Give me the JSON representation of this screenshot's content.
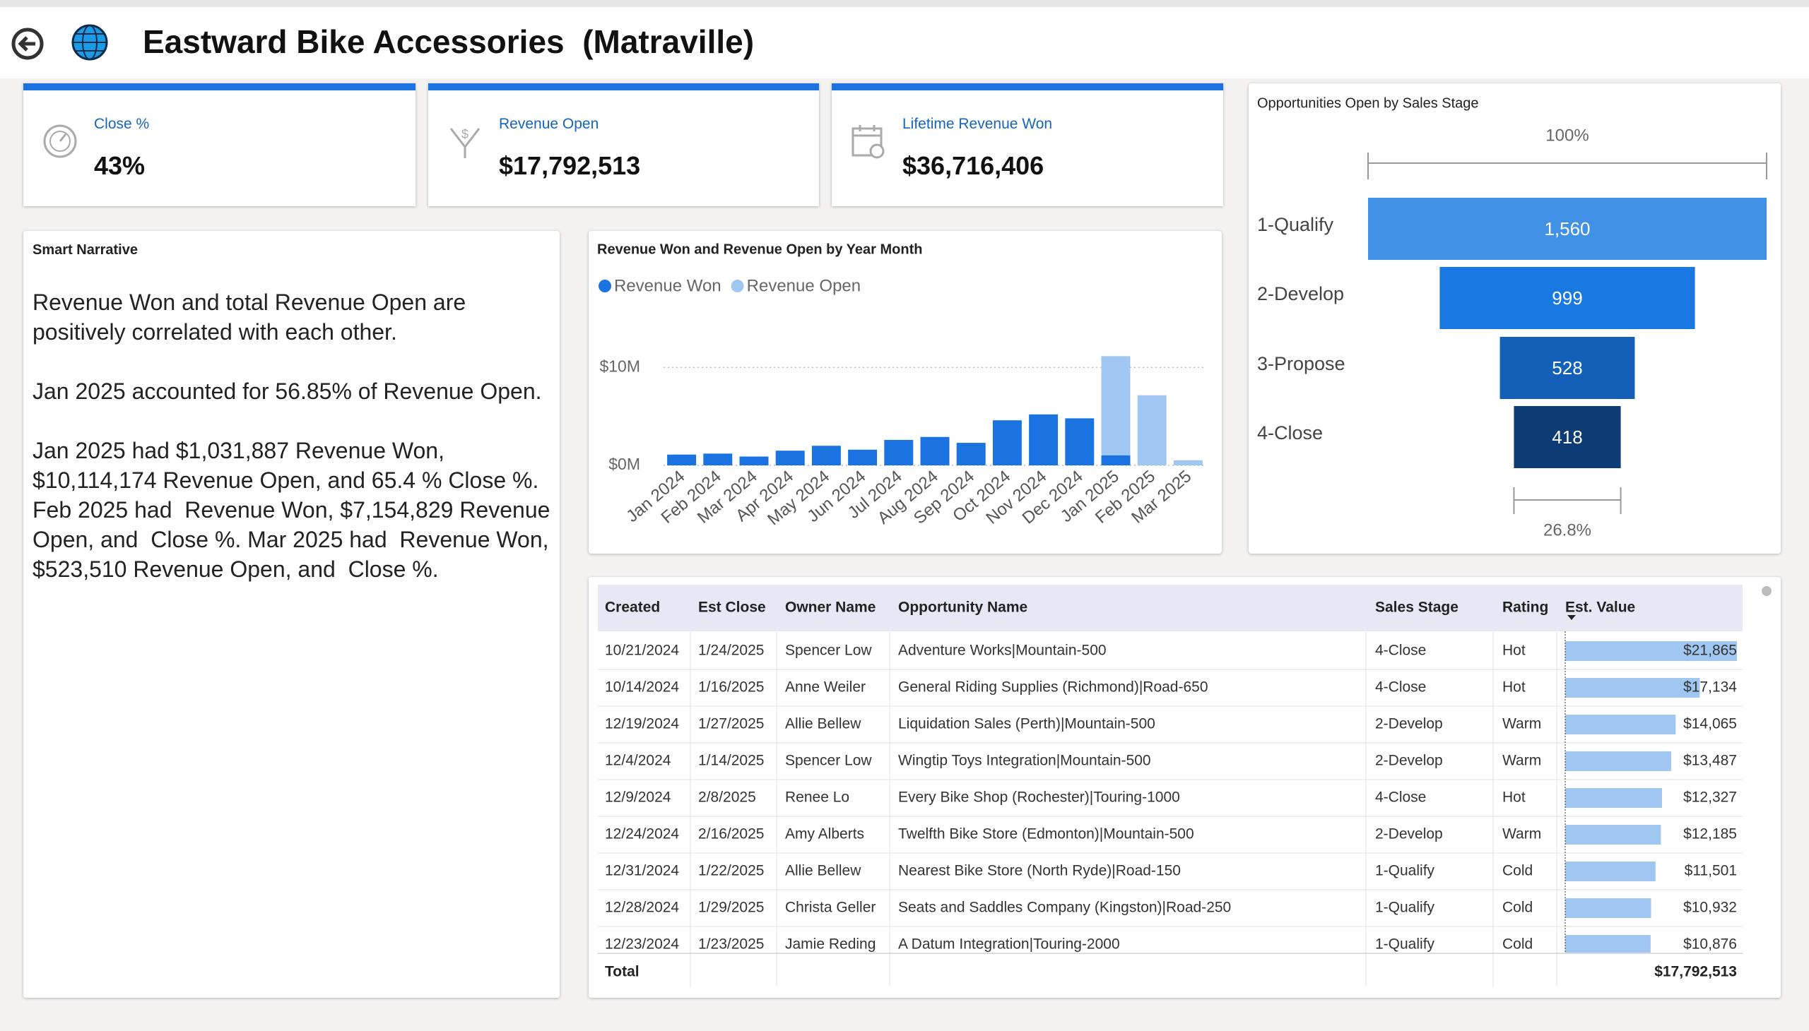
{
  "header": {
    "title": "Eastward Bike Accessories  (Matraville)"
  },
  "kpis": [
    {
      "label": "Close %",
      "value": "43%"
    },
    {
      "label": "Revenue Open",
      "value": "$17,792,513"
    },
    {
      "label": "Lifetime Revenue Won",
      "value": "$36,716,406"
    }
  ],
  "narrative": {
    "title": "Smart Narrative",
    "paragraphs": [
      "Revenue Won and total Revenue Open are positively correlated with each other.",
      "Jan 2025 accounted for 56.85% of Revenue Open.",
      "Jan 2025 had $1,031,887 Revenue Won, $10,114,174 Revenue Open, and 65.4 % Close %. Feb 2025 had  Revenue Won, $7,154,829 Revenue Open, and  Close %. Mar 2025 had  Revenue Won, $523,510 Revenue Open, and  Close %."
    ]
  },
  "chart_data": [
    {
      "type": "bar",
      "stacked": true,
      "title": "Revenue Won and Revenue Open by Year Month",
      "categories": [
        "Jan 2024",
        "Feb 2024",
        "Mar 2024",
        "Apr 2024",
        "May 2024",
        "Jun 2024",
        "Jul 2024",
        "Aug 2024",
        "Sep 2024",
        "Oct 2024",
        "Nov 2024",
        "Dec 2024",
        "Jan 2025",
        "Feb 2025",
        "Mar 2025"
      ],
      "series": [
        {
          "name": "Revenue Won",
          "color": "#1a73e0",
          "values": [
            1100000,
            1200000,
            900000,
            1500000,
            2000000,
            1600000,
            2600000,
            2900000,
            2300000,
            4600000,
            5200000,
            4800000,
            1031887,
            0,
            0
          ]
        },
        {
          "name": "Revenue Open",
          "color": "#a0c6f2",
          "values": [
            0,
            0,
            0,
            0,
            0,
            0,
            0,
            0,
            0,
            0,
            0,
            0,
            10114174,
            7154829,
            523510
          ]
        }
      ],
      "ylim": [
        0,
        16000000
      ],
      "yticks": [
        {
          "value": 0,
          "label": "$0M"
        },
        {
          "value": 10000000,
          "label": "$10M"
        }
      ],
      "grid": true
    },
    {
      "type": "funnel",
      "title": "Opportunities Open by Sales Stage",
      "categories": [
        "1-Qualify",
        "2-Develop",
        "3-Propose",
        "4-Close"
      ],
      "values": [
        1560,
        999,
        528,
        418
      ],
      "value_labels": [
        "1,560",
        "999",
        "528",
        "418"
      ],
      "colors": [
        "#4192e6",
        "#1a78e2",
        "#1460b8",
        "#0d3b73"
      ],
      "top_label": "100%",
      "bottom_label": "26.8%"
    }
  ],
  "table": {
    "columns": [
      "Created",
      "Est Close",
      "Owner Name",
      "Opportunity Name",
      "Sales Stage",
      "Rating",
      "Est. Value"
    ],
    "rows": [
      [
        "10/21/2024",
        "1/24/2025",
        "Spencer Low",
        "Adventure Works|Mountain-500",
        "4-Close",
        "Hot",
        21865
      ],
      [
        "10/14/2024",
        "1/16/2025",
        "Anne Weiler",
        "General Riding Supplies  (Richmond)|Road-650",
        "4-Close",
        "Hot",
        17134
      ],
      [
        "12/19/2024",
        "1/27/2025",
        "Allie Bellew",
        "Liquidation Sales  (Perth)|Mountain-500",
        "2-Develop",
        "Warm",
        14065
      ],
      [
        "12/4/2024",
        "1/14/2025",
        "Spencer Low",
        "Wingtip Toys Integration|Mountain-500",
        "2-Develop",
        "Warm",
        13487
      ],
      [
        "12/9/2024",
        "2/8/2025",
        "Renee Lo",
        "Every Bike Shop  (Rochester)|Touring-1000",
        "4-Close",
        "Hot",
        12327
      ],
      [
        "12/24/2024",
        "2/16/2025",
        "Amy Alberts",
        "Twelfth Bike Store  (Edmonton)|Mountain-500",
        "2-Develop",
        "Warm",
        12185
      ],
      [
        "12/31/2024",
        "1/22/2025",
        "Allie Bellew",
        "Nearest Bike Store  (North Ryde)|Road-150",
        "1-Qualify",
        "Cold",
        11501
      ],
      [
        "12/28/2024",
        "1/29/2025",
        "Christa Geller",
        "Seats and Saddles Company  (Kingston)|Road-250",
        "1-Qualify",
        "Cold",
        10932
      ],
      [
        "12/23/2024",
        "1/23/2025",
        "Jamie Reding",
        "A Datum Integration|Touring-2000",
        "1-Qualify",
        "Cold",
        10876
      ]
    ],
    "value_labels": [
      "$21,865",
      "$17,134",
      "$14,065",
      "$13,487",
      "$12,327",
      "$12,185",
      "$11,501",
      "$10,932",
      "$10,876"
    ],
    "total_label": "Total",
    "total_value": "$17,792,513"
  }
}
